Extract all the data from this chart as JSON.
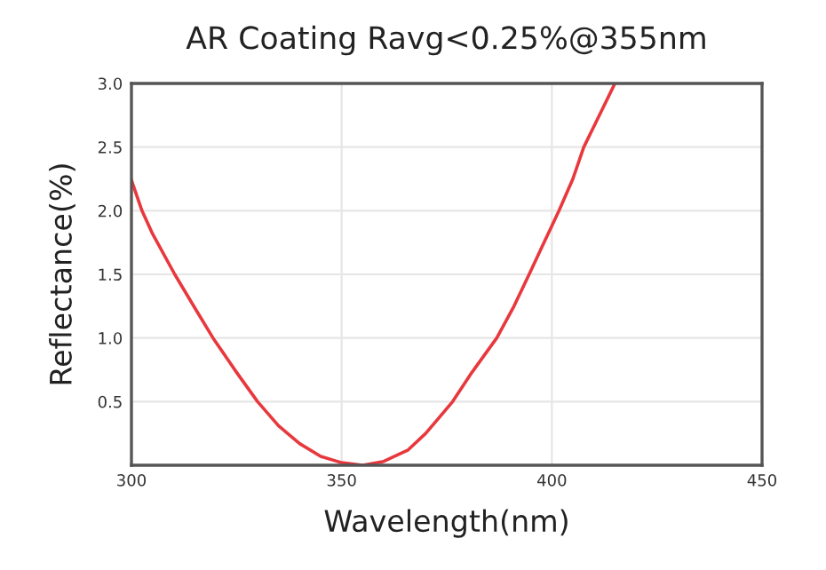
{
  "chart_data": {
    "type": "line",
    "title": "AR Coating Ravg<0.25%@355nm",
    "xlabel": "Wavelength(nm)",
    "ylabel": "Reflectance(%)",
    "x": [
      300,
      302.5,
      305,
      310.3,
      315,
      319.4,
      325,
      330,
      335,
      340,
      345,
      350,
      355,
      360,
      365.8,
      370,
      376.4,
      381,
      386.9,
      391,
      394.6,
      398,
      401.7,
      405,
      407.6,
      411,
      415
    ],
    "series": [
      {
        "color": "#e8383d",
        "values": [
          2.24,
          2.0,
          1.82,
          1.5,
          1.24,
          1.0,
          0.73,
          0.5,
          0.31,
          0.17,
          0.07,
          0.02,
          0.0,
          0.03,
          0.12,
          0.25,
          0.5,
          0.73,
          1.0,
          1.25,
          1.5,
          1.74,
          2.0,
          2.25,
          2.5,
          2.73,
          3.0
        ]
      }
    ],
    "xlim": [
      300,
      450
    ],
    "xticks": [
      300,
      350,
      400,
      450
    ],
    "ylim": [
      0,
      3.0
    ],
    "yticks": [
      0.5,
      {
        "value": 1,
        "label": "1.0"
      },
      1.5,
      {
        "value": 2,
        "label": "2.0"
      },
      2.5,
      {
        "value": 3,
        "label": "3.0"
      }
    ],
    "grid": true,
    "marker": "none",
    "line_style": "solid",
    "legend": false
  }
}
